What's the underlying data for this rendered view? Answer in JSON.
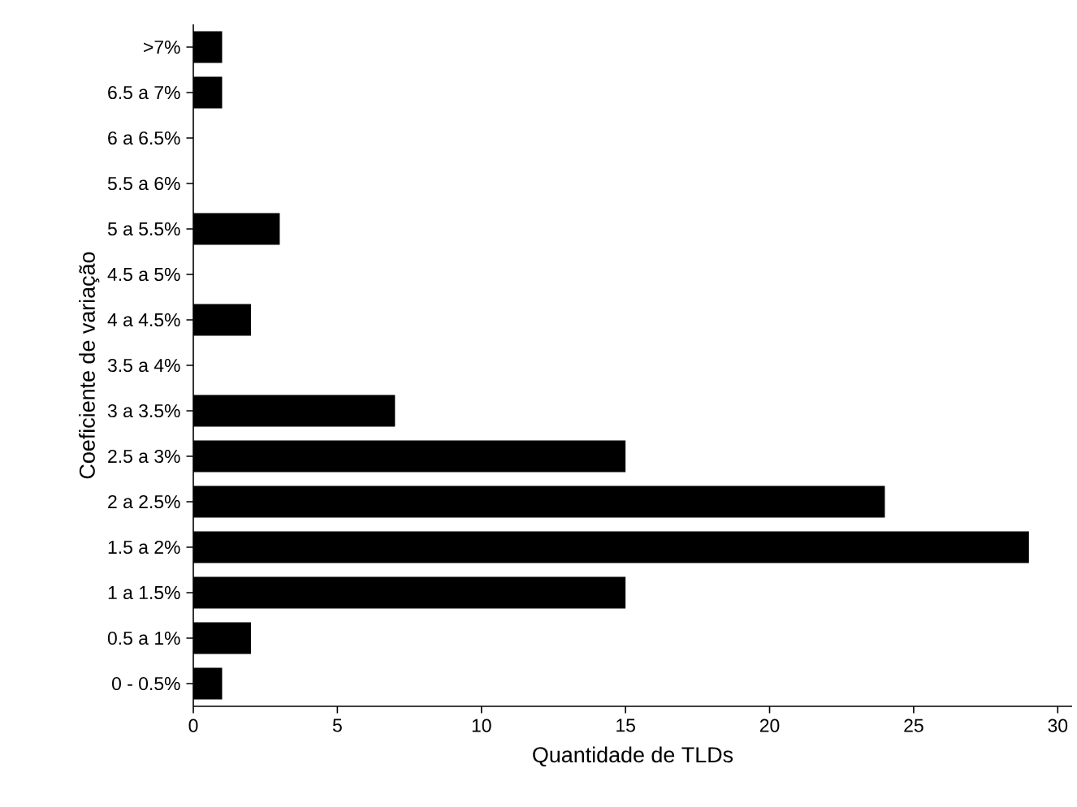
{
  "chart_data": {
    "type": "bar",
    "orientation": "horizontal",
    "xlabel": "Quantidade de TLDs",
    "ylabel": "Coeficiente de variação",
    "categories": [
      ">7%",
      "6.5 a 7%",
      "6 a 6.5%",
      "5.5 a 6%",
      "5 a 5.5%",
      "4.5 a 5%",
      "4 a 4.5%",
      "3.5 a 4%",
      "3 a 3.5%",
      "2.5 a 3%",
      "2 a 2.5%",
      "1.5 a 2%",
      "1 a 1.5%",
      "0.5 a 1%",
      "0 - 0.5%"
    ],
    "values": [
      1,
      1,
      0,
      0,
      3,
      0,
      2,
      0,
      7,
      15,
      24,
      29,
      15,
      2,
      1
    ],
    "color": "#000000",
    "xlim": [
      0,
      30.5
    ],
    "xticks": [
      0,
      5,
      10,
      15,
      20,
      25,
      30
    ]
  }
}
